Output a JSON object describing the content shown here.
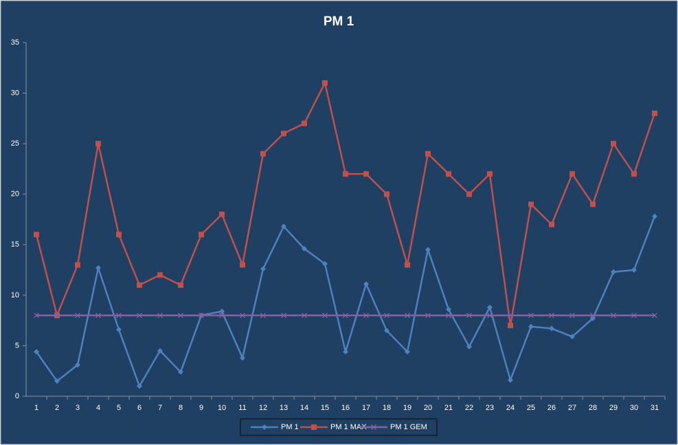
{
  "chart_data": {
    "type": "line",
    "title": "PM 1",
    "categories": [
      "1",
      "2",
      "3",
      "4",
      "5",
      "6",
      "7",
      "8",
      "9",
      "10",
      "11",
      "12",
      "13",
      "14",
      "15",
      "16",
      "17",
      "18",
      "19",
      "20",
      "21",
      "22",
      "23",
      "24",
      "25",
      "26",
      "27",
      "28",
      "29",
      "30",
      "31"
    ],
    "series": [
      {
        "name": "PM 1",
        "color": "#4f81bd",
        "marker": "diamond",
        "values": [
          4.4,
          1.5,
          3.1,
          12.7,
          6.6,
          1.0,
          4.5,
          2.4,
          8.0,
          8.4,
          3.8,
          12.6,
          16.8,
          14.6,
          13.1,
          4.4,
          11.1,
          6.5,
          4.4,
          14.5,
          8.6,
          4.9,
          8.8,
          1.6,
          6.9,
          6.7,
          5.9,
          7.7,
          12.3,
          12.5,
          17.8
        ]
      },
      {
        "name": "PM 1 MAX",
        "color": "#c0504d",
        "marker": "square",
        "values": [
          16,
          8,
          13,
          25,
          16,
          11,
          12,
          11,
          16,
          18,
          13,
          24,
          26,
          27,
          31,
          22,
          22,
          20,
          13,
          24,
          22,
          20,
          22,
          7,
          19,
          17,
          22,
          19,
          25,
          22,
          28
        ]
      },
      {
        "name": "PM 1 GEM",
        "color": "#8064a2",
        "marker": "x",
        "values": [
          8,
          8,
          8,
          8,
          8,
          8,
          8,
          8,
          8,
          8,
          8,
          8,
          8,
          8,
          8,
          8,
          8,
          8,
          8,
          8,
          8,
          8,
          8,
          8,
          8,
          8,
          8,
          8,
          8,
          8,
          8
        ]
      }
    ],
    "ylim": [
      0,
      35
    ],
    "yticks": [
      0,
      5,
      10,
      15,
      20,
      25,
      30,
      35
    ],
    "grid": false,
    "legend": "bottom"
  }
}
